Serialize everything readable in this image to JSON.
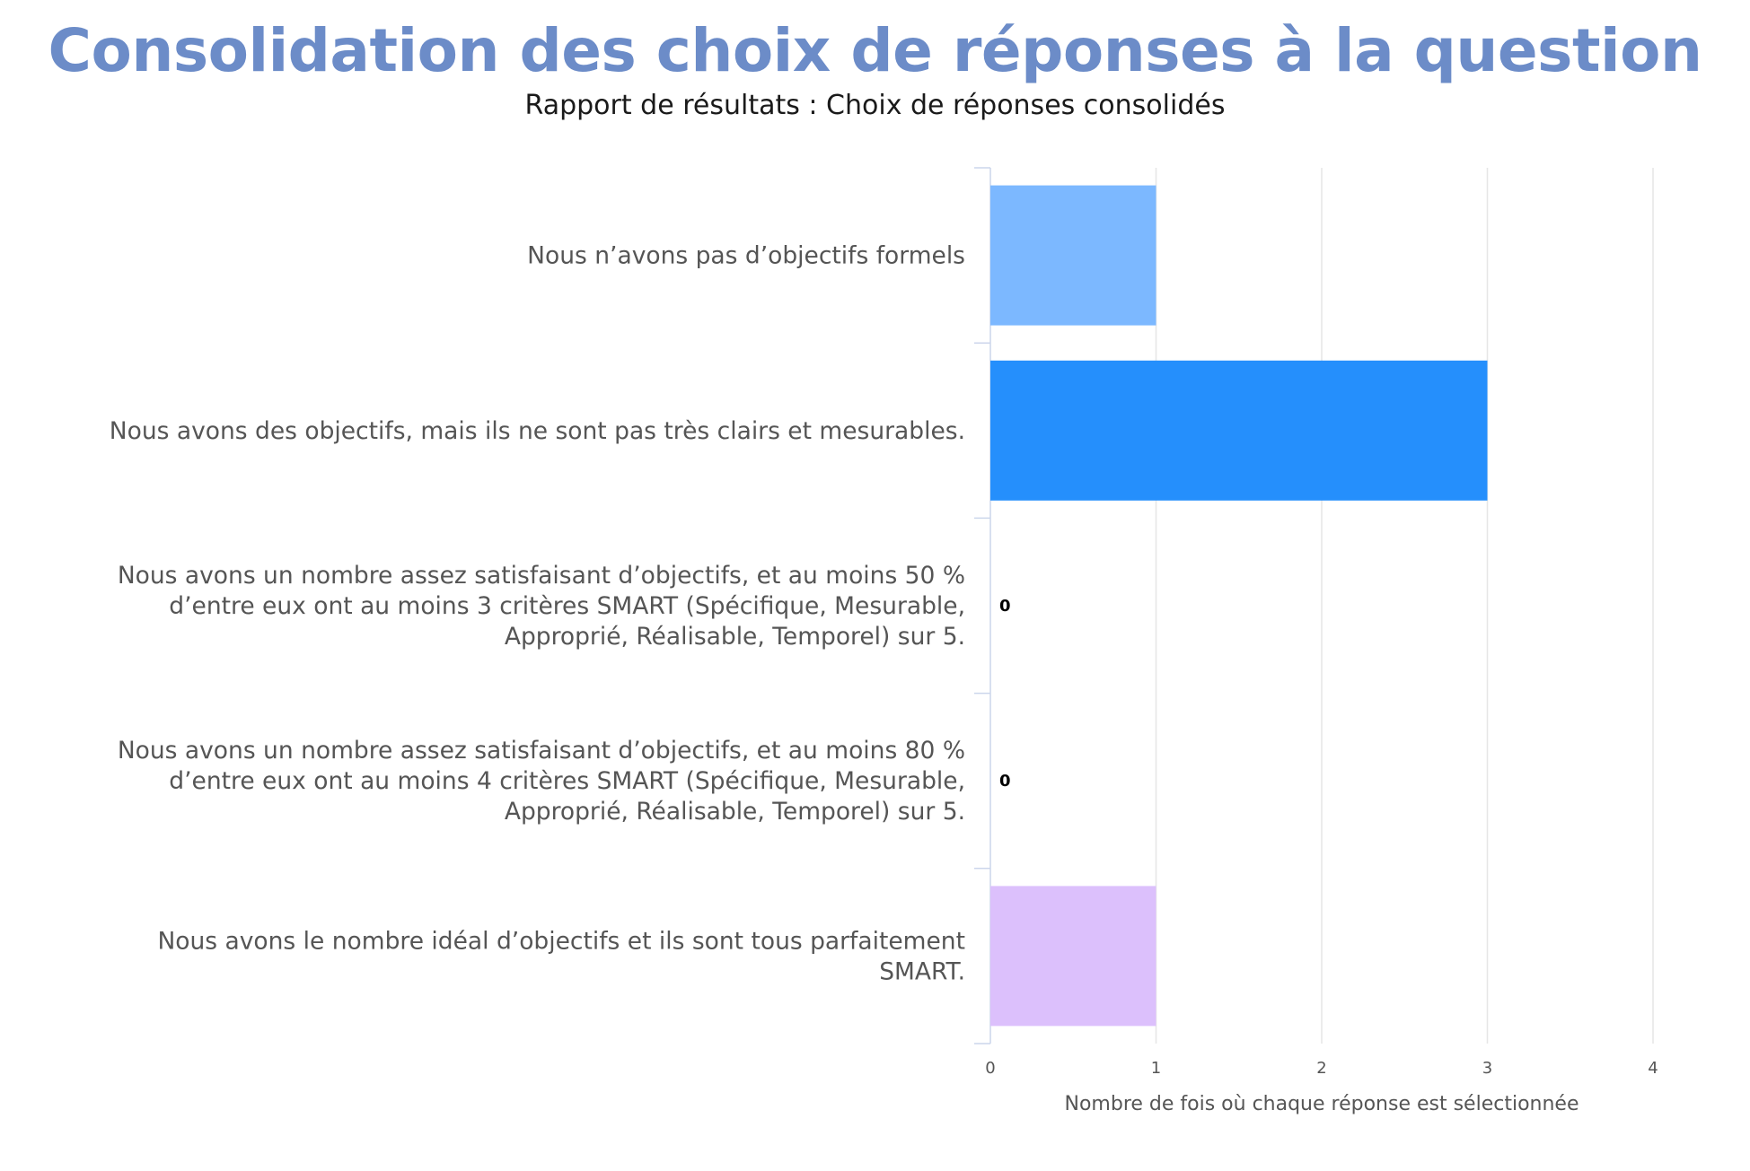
{
  "header": {
    "title": "Consolidation des choix de réponses à la question",
    "subtitle": "Rapport de résultats : Choix de réponses consolidés"
  },
  "chart_data": {
    "type": "bar",
    "orientation": "horizontal",
    "categories": [
      [
        "Nous n’avons pas d’objectifs formels"
      ],
      [
        "Nous avons des objectifs, mais ils ne sont pas très clairs et mesurables."
      ],
      [
        "Nous avons un nombre assez satisfaisant d’objectifs, et au moins 50 %",
        "d’entre eux ont au moins 3 critères SMART (Spécifique, Mesurable,",
        "Approprié, Réalisable, Temporel) sur 5."
      ],
      [
        "Nous avons un nombre assez satisfaisant d’objectifs, et au moins 80 %",
        "d’entre eux ont au moins 4 critères SMART (Spécifique, Mesurable,",
        "Approprié, Réalisable, Temporel) sur 5."
      ],
      [
        "Nous avons le nombre idéal d’objectifs et ils sont tous parfaitement",
        "SMART."
      ]
    ],
    "values": [
      1,
      3,
      0,
      0,
      1
    ],
    "bar_colors": [
      "#7cb8ff",
      "#258ffc",
      "#258ffc",
      "#258ffc",
      "#dcc0fc"
    ],
    "zero_labels": [
      "0",
      "0"
    ],
    "xlabel": "Nombre de fois où chaque réponse est sélectionnée",
    "xlim": [
      0,
      4
    ],
    "xticks": [
      "0",
      "1",
      "2",
      "3",
      "4"
    ],
    "grid": true,
    "gridline_color": "#e6e6e6",
    "legend": "none"
  }
}
